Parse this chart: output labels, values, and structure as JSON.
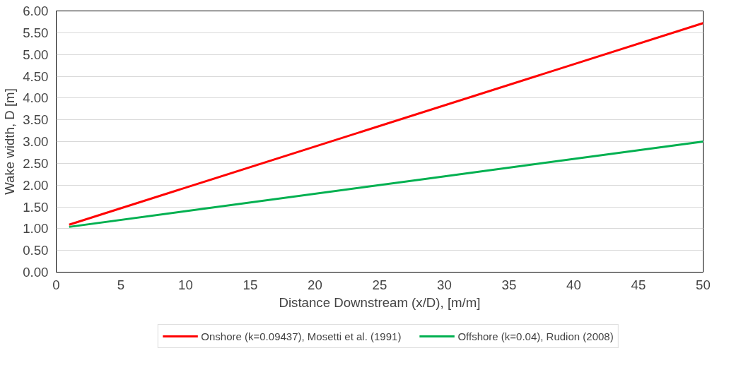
{
  "chart_data": {
    "type": "line",
    "xlabel": "Distance Downstream (x/D), [m/m]",
    "ylabel": "Wake width, D [m]",
    "xlim": [
      0,
      50
    ],
    "xticks": [
      0,
      5,
      10,
      15,
      20,
      25,
      30,
      35,
      40,
      45,
      50
    ],
    "ylim": [
      0,
      6
    ],
    "yticks": [
      {
        "value": 0,
        "label": "0.00"
      },
      {
        "value": 0.5,
        "label": "0.50"
      },
      {
        "value": 1,
        "label": "1.00"
      },
      {
        "value": 1.5,
        "label": "1.50"
      },
      {
        "value": 2,
        "label": "2.00"
      },
      {
        "value": 2.5,
        "label": "2.50"
      },
      {
        "value": 3,
        "label": "3.00"
      },
      {
        "value": 3.5,
        "label": "3.50"
      },
      {
        "value": 4,
        "label": "4.00"
      },
      {
        "value": 4.5,
        "label": "4.50"
      },
      {
        "value": 5,
        "label": "5.00"
      },
      {
        "value": 5.5,
        "label": "5.50"
      },
      {
        "value": 6,
        "label": "6.00"
      }
    ],
    "x": [
      1,
      50
    ],
    "series": [
      {
        "name": "Onshore (k=0.09437), Mosetti et al. (1991)",
        "color": "#ff0000",
        "values": [
          1.09,
          5.72
        ]
      },
      {
        "name": "Offshore (k=0.04), Rudion (2008)",
        "color": "#00b050",
        "values": [
          1.04,
          3.0
        ]
      }
    ],
    "grid": "y",
    "legend": "bottom",
    "marker": "none",
    "line_style": "solid"
  }
}
